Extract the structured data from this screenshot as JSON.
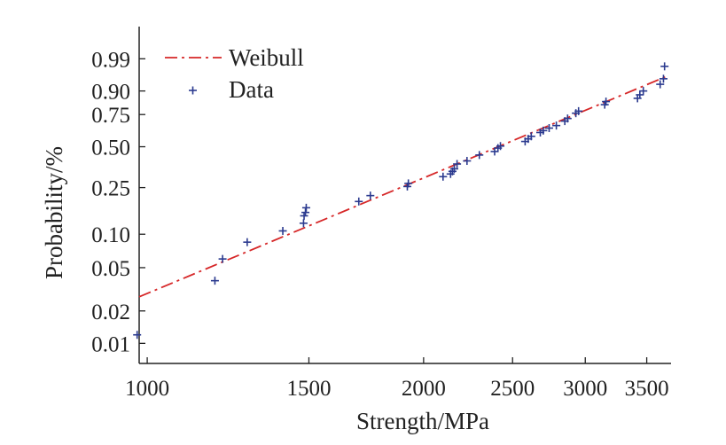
{
  "chart_data": {
    "type": "scatter",
    "title": "",
    "xlabel": "Strength/MPa",
    "ylabel": "Probability/%",
    "x_scale": "log",
    "y_scale": "weibull",
    "xlim": [
      980,
      3720
    ],
    "ylim": [
      0.0065,
      0.9999
    ],
    "x_ticks": [
      1000,
      1500,
      2000,
      2500,
      3000,
      3500
    ],
    "x_tick_labels": [
      "1000",
      "1500",
      "2000",
      "2500",
      "3000",
      "3500"
    ],
    "y_ticks": [
      0.01,
      0.02,
      0.05,
      0.1,
      0.25,
      0.5,
      0.75,
      0.9,
      0.99
    ],
    "y_tick_labels": [
      "0.01",
      "0.02",
      "0.05",
      "0.10",
      "0.25",
      "0.50",
      "0.75",
      "0.90",
      "0.99"
    ],
    "grid": false,
    "legend_position": "top-left",
    "colors": {
      "weibull": "#d62728",
      "data": "#2b3a8f",
      "axis": "#222222"
    },
    "series": [
      {
        "name": "Weibull",
        "kind": "line",
        "style": "dash-dot",
        "x": [
          980,
          3700
        ],
        "y": [
          0.027,
          0.96
        ]
      },
      {
        "name": "Data",
        "kind": "scatter",
        "marker": "+",
        "x": [
          975,
          1185,
          1208,
          1285,
          1405,
          1480,
          1482,
          1487,
          1490,
          1700,
          1750,
          1920,
          1925,
          2100,
          2140,
          2150,
          2160,
          2175,
          2230,
          2300,
          2390,
          2410,
          2425,
          2580,
          2600,
          2620,
          2680,
          2700,
          2740,
          2790,
          2850,
          2870,
          2930,
          2950,
          3150,
          3160,
          3420,
          3440,
          3470,
          3620,
          3650,
          3660
        ],
        "y": [
          0.012,
          0.038,
          0.06,
          0.085,
          0.107,
          0.125,
          0.145,
          0.155,
          0.17,
          0.192,
          0.215,
          0.255,
          0.27,
          0.305,
          0.32,
          0.335,
          0.35,
          0.38,
          0.4,
          0.44,
          0.465,
          0.49,
          0.505,
          0.54,
          0.56,
          0.58,
          0.61,
          0.625,
          0.645,
          0.665,
          0.7,
          0.72,
          0.76,
          0.775,
          0.82,
          0.84,
          0.86,
          0.88,
          0.9,
          0.93,
          0.95,
          0.98
        ]
      }
    ]
  }
}
